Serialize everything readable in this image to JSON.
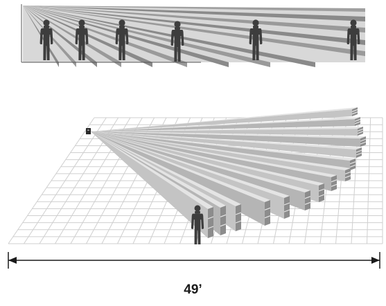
{
  "diagram": {
    "dimension_label": "49’",
    "colors": {
      "beam_dark": "#8c8c8c",
      "beam_light": "#e4e4e4",
      "beam_mid": "#b5b5b5",
      "grid_line": "#cfcfcf",
      "person": "#3d3d3d",
      "arrow": "#1a1a1a"
    },
    "icons": [
      "sensor-icon",
      "person-icon"
    ]
  }
}
